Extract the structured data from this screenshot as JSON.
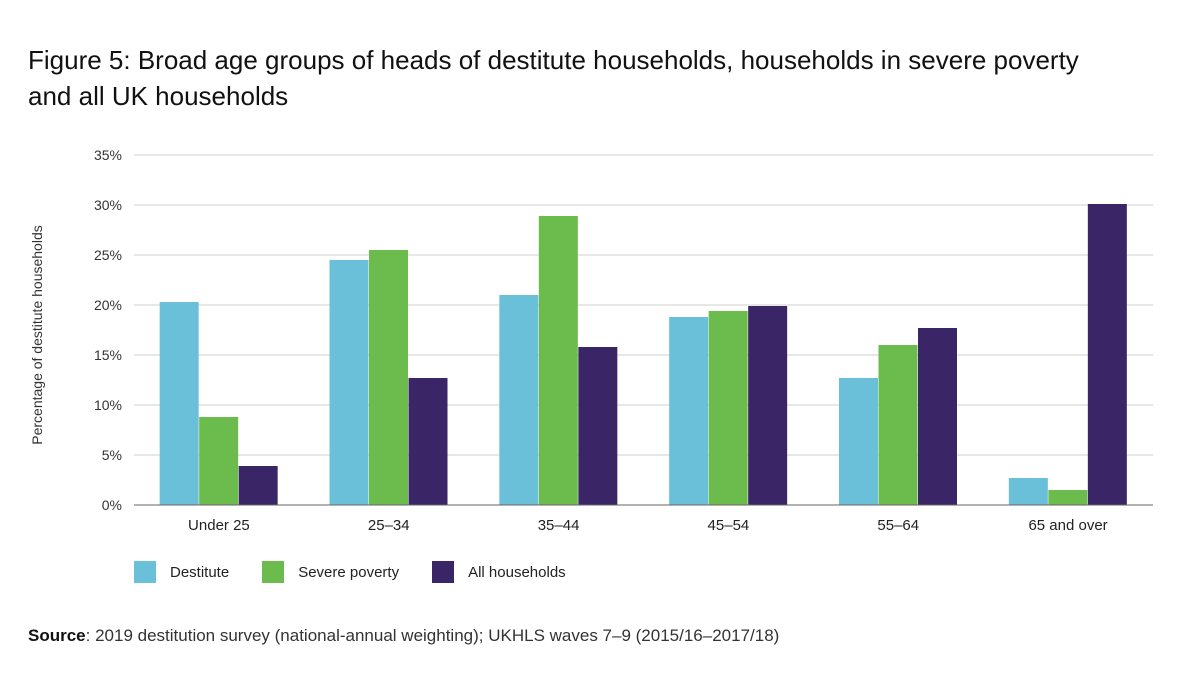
{
  "title": {
    "line1": "Figure 5: Broad age groups of heads of destitute households, households in severe poverty",
    "line2": "and all UK households"
  },
  "source": {
    "label": "Source",
    "text": ": 2019 destitution survey (national-annual weighting); UKHLS waves 7–9 (2015/16–2017/18)"
  },
  "colors": {
    "destitute": "#69c0d8",
    "severe_poverty": "#6cbb4d",
    "all_households": "#3a2566",
    "grid": "#cfcfcf"
  },
  "chart_data": {
    "type": "bar",
    "categories": [
      "Under 25",
      "25–34",
      "35–44",
      "45–54",
      "55–64",
      "65 and over"
    ],
    "series": [
      {
        "name": "Destitute",
        "color": "#69c0d8",
        "values": [
          20.3,
          24.5,
          21.0,
          18.8,
          12.7,
          2.7
        ]
      },
      {
        "name": "Severe poverty",
        "color": "#6cbb4d",
        "values": [
          8.8,
          25.5,
          28.9,
          19.4,
          16.0,
          1.5
        ]
      },
      {
        "name": "All households",
        "color": "#3a2566",
        "values": [
          3.9,
          12.7,
          15.8,
          19.9,
          17.7,
          30.1
        ]
      }
    ],
    "ylabel": "Percentage of destitute households",
    "xlabel": "",
    "ylim": [
      0,
      35
    ],
    "yticks": [
      0,
      5,
      10,
      15,
      20,
      25,
      30,
      35
    ],
    "ytick_labels": [
      "0%",
      "5%",
      "10%",
      "15%",
      "20%",
      "25%",
      "30%",
      "35%"
    ],
    "grid": true,
    "legend_position": "bottom-left"
  }
}
